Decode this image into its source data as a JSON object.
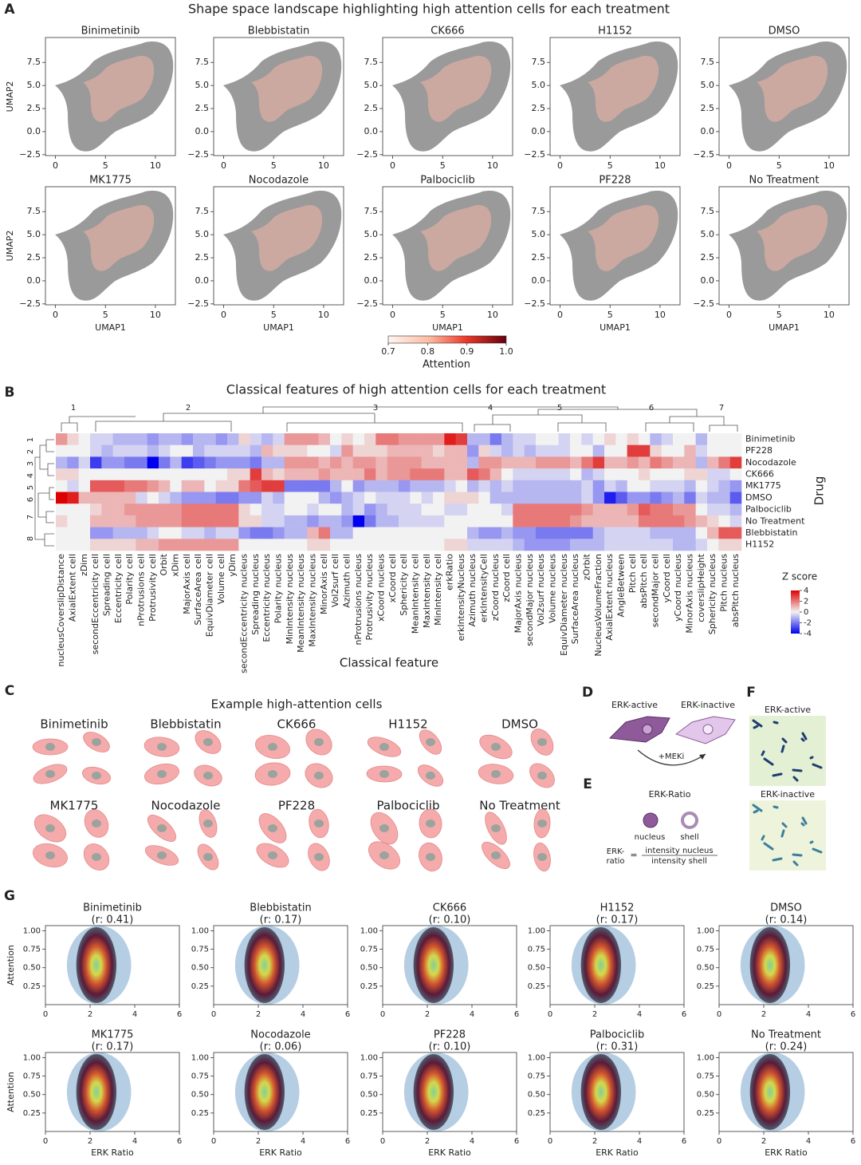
{
  "panel_labels": [
    "A",
    "B",
    "C",
    "D",
    "E",
    "F",
    "G"
  ],
  "umap": {
    "title": "Shape space landscape highlighting high attention cells for each treatment",
    "drugs": [
      "Binimetinib",
      "Blebbistatin",
      "CK666",
      "H1152",
      "DMSO",
      "MK1775",
      "Nocodazole",
      "Palbociclib",
      "PF228",
      "No Treatment"
    ],
    "xlabel": "UMAP1",
    "ylabel": "UMAP2",
    "xlim": [
      -1,
      12
    ],
    "ylim": [
      -2.6,
      10.2
    ],
    "xticks": [
      0,
      5,
      10
    ],
    "yticks": [
      {
        "value": -2.5,
        "label": "−2.5"
      },
      {
        "value": 0,
        "label": "0.0"
      },
      {
        "value": 2.5,
        "label": "2.5"
      },
      {
        "value": 5,
        "label": "5.0"
      },
      {
        "value": 7.5,
        "label": "7.5"
      }
    ],
    "colorbar": {
      "label": "Attention",
      "lim": [
        0.7,
        1.0
      ],
      "ticks": [
        0.7,
        0.8,
        0.9,
        {
          "value": 1,
          "label": "1.0"
        }
      ]
    }
  },
  "heatmap": {
    "title": "Classical features of high attention cells for each treatment",
    "xlabel": "Classical feature",
    "ylabel": "Drug",
    "col_clusters": [
      1,
      2,
      3,
      4,
      5,
      6,
      7
    ],
    "row_clusters": [
      1,
      2,
      3,
      4,
      5,
      6,
      7,
      8
    ],
    "features": [
      "nucleusCoverslipDistance",
      "AxialExtent cell",
      "zDim",
      "secondEccentricity cell",
      "Spreading cell",
      "Eccentricity cell",
      "Polarity cell",
      "nProtrusions cell",
      "Protrusivity cell",
      "Orbit",
      "xDim",
      "MajorAxis cell",
      "SurfaceArea cell",
      "EquivDiameter cell",
      "Volume cell",
      "yDim",
      "secondEccentricity nucleus",
      "Spreading nucleus",
      "Eccentricity nucleus",
      "Polarity nucleus",
      "MinIntensity nucleus",
      "MeanIntensity nucleus",
      "MaxIntensity nucleus",
      "MinorAxis cell",
      "Vol2surf cell",
      "Azimuth cell",
      "nProtrusions nucleus",
      "Protrusivity nucleus",
      "xCoord nucleus",
      "xCoord cell",
      "Sphericity cell",
      "MeanIntensity cell",
      "MaxIntensity cell",
      "MinIntensity cell",
      "erkRatio",
      "erkIntensityNucleus",
      "Azimuth nucleus",
      "erkIntensityCell",
      "zCoord nucleus",
      "zCoord cell",
      "MajorAxis nucleus",
      "secondMajor nucleus",
      "Vol2surf nucleus",
      "Volume nucleus",
      "EquivDiameter nucleus",
      "SurfaceArea nucleus",
      "zOrbit",
      "NucleusVolumeFraction",
      "AxialExtent nucleus",
      "AngleBetween",
      "Pitch cell",
      "absPitch cell",
      "secondMajor cell",
      "yCoord cell",
      "yCoord nucleus",
      "MinorAxis nucleus",
      "coverslipHeight",
      "Sphericity nucleus",
      "Pitch nucleus",
      "absPitch nucleus"
    ],
    "drugs": [
      "Binimetinib",
      "PF228",
      "Nocodazole",
      "CK666",
      "MK1775",
      "DMSO",
      "Palbociclib",
      "No Treatment",
      "Blebbistatin",
      "H1152"
    ],
    "values": [
      [
        1.5,
        0.5,
        0,
        -0.5,
        -0.5,
        -1,
        -1,
        -1,
        -1.5,
        -1,
        -1,
        -1.5,
        -1,
        -1,
        -1.5,
        -1,
        0.5,
        -0.5,
        -1,
        -0.5,
        1.5,
        1.5,
        1.5,
        1,
        0,
        0.5,
        0,
        0.5,
        2,
        2,
        1.5,
        1.5,
        1.5,
        1.5,
        3.5,
        3,
        -1,
        -1,
        -2,
        -1,
        -0.5,
        -0.5,
        0,
        0,
        -0.5,
        0,
        -0.5,
        0,
        0.5,
        0,
        0.5,
        0,
        -1,
        -0.5,
        0,
        0,
        -1,
        0,
        0,
        0
      ],
      [
        0,
        0,
        0,
        -0.5,
        -1,
        -0.5,
        -0.5,
        -0.5,
        -1,
        -0.5,
        0,
        0,
        -1,
        -0.5,
        -0.5,
        -0.5,
        -0.5,
        -1,
        1,
        0.5,
        0.5,
        0.5,
        0,
        0,
        -0.5,
        1.5,
        0.5,
        0.5,
        0.5,
        1,
        1,
        1,
        1,
        0.5,
        1,
        1,
        -1.5,
        0.5,
        -0.5,
        -1,
        -0.5,
        -1,
        -0.5,
        -0.5,
        -0.5,
        0,
        0,
        -1,
        0,
        0,
        3,
        3,
        0.5,
        0,
        0,
        1,
        -0.5,
        0,
        0,
        0
      ],
      [
        -1,
        -1.5,
        -0.5,
        -3,
        -1.5,
        -1.5,
        -2,
        -2,
        -4,
        -2,
        -1,
        -3,
        -2.5,
        -2,
        -1.5,
        -1.5,
        -1.5,
        -2,
        -1,
        -1,
        1.5,
        1.5,
        1.5,
        1,
        1.5,
        1,
        1.5,
        1.5,
        1,
        1.5,
        1.5,
        1.5,
        1,
        1,
        1,
        1,
        -1,
        1.5,
        1.5,
        1,
        1,
        1,
        1.5,
        1.5,
        1.5,
        1,
        2,
        3,
        1,
        1,
        1.5,
        1,
        2,
        1.5,
        1,
        1,
        -1,
        1,
        2,
        3
      ],
      [
        0.5,
        0.5,
        0,
        0,
        0,
        0,
        0,
        0,
        0,
        0,
        0,
        0,
        0,
        0,
        0,
        0.5,
        0.5,
        3,
        1,
        0.5,
        1,
        1,
        1,
        1.5,
        1,
        1,
        1,
        2,
        1,
        1.5,
        1.5,
        2,
        2,
        2,
        1,
        1,
        2.5,
        2,
        1,
        0,
        -0.5,
        -0.5,
        -0.5,
        -0.5,
        -0.5,
        0,
        -1,
        -0.5,
        0,
        0,
        0,
        0.5,
        0,
        0,
        0,
        0.5,
        0.5,
        -0.5,
        -0.5,
        0
      ],
      [
        0,
        -0.5,
        0,
        2.5,
        2.5,
        2.5,
        2,
        2,
        1.5,
        1,
        0,
        1,
        1,
        0,
        0.5,
        0.5,
        2,
        2.5,
        3,
        3,
        -2,
        -2,
        -2,
        -2,
        -1,
        0,
        -1.5,
        -1,
        -1,
        -1,
        -1.5,
        -1,
        -1,
        -1,
        -0.5,
        0,
        -1,
        -0.5,
        -1,
        -0.5,
        -1,
        -1,
        -1,
        -1,
        -1,
        -1,
        -0.5,
        -1.5,
        -0.5,
        -1,
        0,
        0,
        -0.5,
        -0.5,
        -0.5,
        -1,
        0,
        -0.5,
        -1,
        -1.5
      ],
      [
        4,
        3.5,
        1,
        1,
        1,
        1,
        1,
        -0.5,
        0,
        -0.5,
        -1,
        -1.5,
        -1.5,
        -1.5,
        -2,
        -2,
        -1.5,
        -1.5,
        -0.5,
        -1,
        0,
        0,
        0,
        -1,
        -1.5,
        -1,
        -0.5,
        0,
        -0.5,
        -0.5,
        -0.5,
        0,
        -0.5,
        0,
        0.5,
        0.5,
        0.5,
        0,
        -1,
        -1,
        -1,
        -1,
        -1,
        -1,
        -1,
        -1,
        -0.5,
        -1.5,
        -3.5,
        -2.5,
        -1.5,
        -1.5,
        -2,
        -1.5,
        -1,
        -2,
        -0.5,
        -1,
        -1,
        -2.5
      ],
      [
        0,
        0,
        0,
        0.5,
        1,
        1,
        1.5,
        1.5,
        1.5,
        1.5,
        1.5,
        2,
        2,
        2,
        2,
        2,
        0.5,
        0,
        -0.5,
        -0.5,
        0,
        0,
        -0.5,
        0,
        0,
        -1,
        -0.5,
        -1.5,
        -1,
        -0.5,
        -0.5,
        -0.5,
        0,
        0,
        -0.5,
        -0.5,
        0,
        0,
        0,
        -0.5,
        2,
        2,
        2,
        2,
        2,
        2,
        1.5,
        1,
        1,
        1,
        1.5,
        2.5,
        2,
        2,
        1.5,
        1.5,
        0,
        -0.5,
        -0.5,
        -1
      ],
      [
        0.5,
        0,
        0,
        1,
        1,
        1,
        1,
        1.5,
        1.5,
        1.5,
        1.5,
        2,
        2,
        2,
        2,
        2,
        0.5,
        0.5,
        -0.5,
        -0.5,
        -1,
        -1,
        -1.5,
        -1,
        -1,
        -1.5,
        -4,
        -2,
        -1,
        -1,
        -0.5,
        -0.5,
        -0.5,
        -0.5,
        0,
        0,
        0,
        0,
        0,
        0,
        2,
        2,
        2,
        2,
        2,
        1.5,
        1,
        1,
        1,
        1,
        1,
        2,
        2,
        2,
        2,
        1.5,
        1,
        0.5,
        0,
        -0.5
      ],
      [
        0,
        0,
        0,
        -1.5,
        -1.5,
        -1,
        -1,
        -1,
        -0.5,
        0,
        0,
        -0.5,
        -0.5,
        -1,
        -0.5,
        -0.5,
        -1.5,
        -2,
        -2,
        -1.5,
        -1,
        -1,
        1,
        2,
        -1,
        -1,
        0,
        0,
        0,
        0,
        0,
        0,
        0,
        0,
        0,
        0,
        -1,
        -1.5,
        -1.5,
        -1,
        -1.5,
        -1.5,
        -2,
        -2,
        -2,
        -2,
        -2,
        -1,
        -0.5,
        -0.5,
        -0.5,
        -0.5,
        -1,
        -1,
        -1,
        -1,
        0,
        1,
        2.5,
        2.5
      ],
      [
        0,
        0,
        0,
        0.5,
        0.5,
        0.5,
        0.5,
        1,
        1,
        1.5,
        1.5,
        1.5,
        1.5,
        1.5,
        1.5,
        1.5,
        0,
        0,
        0,
        0,
        0,
        0,
        0.5,
        0.5,
        0,
        0,
        0,
        0,
        0,
        0,
        0,
        0,
        0,
        0,
        0.5,
        0.5,
        -0.5,
        -0.5,
        -0.5,
        -0.5,
        -1,
        -1.5,
        -1.5,
        -1.5,
        -1.5,
        -1,
        -1,
        -1,
        -0.5,
        -0.5,
        -0.5,
        -0.5,
        -0.5,
        -0.5,
        -1,
        -1,
        -0.5,
        0,
        0.5,
        0.5
      ]
    ],
    "colorbar": {
      "label": "Z score",
      "lim": [
        -4,
        4
      ],
      "ticks": [
        4,
        2,
        0,
        -2,
        -4
      ]
    }
  },
  "examples": {
    "title": "Example high-attention cells",
    "drugs": [
      "Binimetinib",
      "Blebbistatin",
      "CK666",
      "H1152",
      "DMSO",
      "MK1775",
      "Nocodazole",
      "PF228",
      "Palbociclib",
      "No Treatment"
    ]
  },
  "erk_diagram": {
    "active": "ERK-active",
    "inactive": "ERK-inactive",
    "treatment": "+MEKi"
  },
  "erk_ratio": {
    "title": "ERK-Ratio",
    "nucleus": "nucleus",
    "shell": "shell",
    "lhs": [
      "ERK-",
      "ratio"
    ],
    "equals": "=",
    "numerator": "intensity nucleus",
    "denominator": "intensity shell"
  },
  "erk_images": {
    "active": "ERK-active",
    "inactive": "ERK-inactive"
  },
  "scatter": {
    "drugs": [
      "Binimetinib",
      "Blebbistatin",
      "CK666",
      "H1152",
      "DMSO",
      "MK1775",
      "Nocodazole",
      "PF228",
      "Palbociclib",
      "No Treatment"
    ],
    "r_labels": [
      "(r: 0.41)",
      "(r: 0.17)",
      "(r: 0.10)",
      "(r: 0.17)",
      "(r: 0.14)",
      "(r: 0.17)",
      "(r: 0.06)",
      "(r: 0.10)",
      "(r: 0.31)",
      "(r: 0.24)"
    ],
    "xlabel": "ERK Ratio",
    "ylabel": "Attention",
    "xlim": [
      0,
      6
    ],
    "ylim": [
      0,
      1.07
    ],
    "xticks": [
      0,
      2,
      4,
      6
    ],
    "yticks": [
      {
        "value": 0.25,
        "label": "0.25"
      },
      {
        "value": 0.5,
        "label": "0.50"
      },
      {
        "value": 0.75,
        "label": "0.75"
      },
      {
        "value": 1,
        "label": "1.00"
      }
    ]
  }
}
